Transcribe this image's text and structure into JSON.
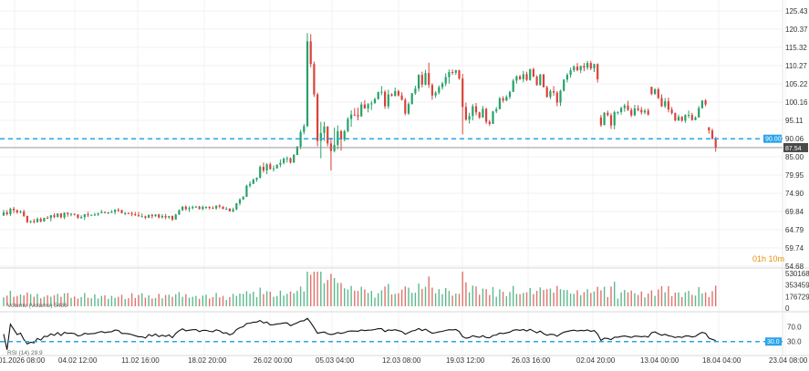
{
  "chart_data": {
    "type": "candlestick",
    "x_tick_labels": [
      "01.2026 08:00",
      "04.02 12:00",
      "11.02 16:00",
      "18.02 20:00",
      "26.02 00:00",
      "05.03 04:00",
      "12.03 08:00",
      "19.03 12:00",
      "26.03 16:00",
      "02.04 20:00",
      "13.04 00:00",
      "18.04 04:00",
      "23.04 08:00"
    ],
    "price_axis": {
      "tick_labels": [
        "125.43",
        "120.37",
        "115.32",
        "110.27",
        "105.22",
        "100.16",
        "95.11",
        "90.06",
        "85.00",
        "79.95",
        "74.90",
        "69.84",
        "64.79",
        "59.74",
        "54.68"
      ],
      "ylim": [
        54.68,
        125.43
      ]
    },
    "reference_line": {
      "value": 90.0,
      "label": "90.00",
      "color": "#29a4e8"
    },
    "last_price": {
      "value": 87.54,
      "label": "87.54",
      "color": "#4a4a4a"
    },
    "countdown": "01h 10m",
    "colors": {
      "up": "#26a269",
      "down": "#d8433a",
      "dashed": "#29a4e8",
      "rsi_line": "#111111"
    },
    "candles": [
      [
        68.7,
        70.3,
        68.6,
        69.6
      ],
      [
        69.6,
        70.2,
        68.7,
        69.1
      ],
      [
        69.1,
        70.9,
        68.6,
        70.6
      ],
      [
        70.6,
        71.1,
        69.4,
        70.2
      ],
      [
        70.2,
        70.4,
        69.2,
        69.6
      ],
      [
        69.6,
        70.2,
        69.3,
        69.8
      ],
      [
        69.8,
        70.3,
        68.3,
        68.6
      ],
      [
        68.6,
        68.7,
        66.6,
        66.9
      ],
      [
        66.9,
        67.4,
        66.6,
        67.2
      ],
      [
        67.2,
        67.8,
        66.5,
        66.9
      ],
      [
        66.9,
        68.2,
        66.7,
        67.8
      ],
      [
        67.8,
        68.2,
        66.8,
        67.1
      ],
      [
        67.1,
        68.1,
        67.0,
        68.1
      ],
      [
        68.1,
        68.6,
        67.8,
        68.0
      ],
      [
        68.0,
        68.8,
        67.1,
        68.8
      ],
      [
        68.8,
        69.4,
        68.0,
        68.3
      ],
      [
        68.3,
        69.3,
        68.2,
        69.3
      ],
      [
        69.3,
        69.4,
        67.9,
        68.2
      ],
      [
        68.2,
        69.6,
        67.7,
        69.5
      ],
      [
        69.5,
        69.6,
        68.4,
        69.1
      ],
      [
        69.1,
        69.4,
        68.5,
        69.2
      ],
      [
        69.2,
        69.3,
        68.7,
        69.0
      ],
      [
        69.0,
        69.1,
        67.8,
        68.1
      ],
      [
        68.1,
        68.8,
        67.8,
        68.3
      ],
      [
        68.3,
        69.1,
        67.5,
        69.1
      ],
      [
        69.1,
        69.7,
        68.3,
        68.8
      ],
      [
        68.8,
        69.0,
        68.6,
        68.9
      ],
      [
        68.9,
        69.5,
        68.6,
        69.0
      ],
      [
        69.0,
        69.5,
        68.6,
        69.4
      ],
      [
        69.4,
        70.3,
        69.3,
        69.7
      ],
      [
        69.7,
        69.8,
        69.4,
        69.4
      ],
      [
        69.4,
        69.7,
        69.1,
        69.6
      ],
      [
        69.6,
        70.2,
        69.4,
        69.7
      ],
      [
        69.7,
        70.5,
        69.0,
        70.3
      ],
      [
        70.3,
        70.8,
        69.7,
        70.2
      ],
      [
        70.2,
        70.3,
        69.3,
        69.4
      ],
      [
        69.4,
        69.7,
        68.8,
        69.4
      ],
      [
        69.4,
        69.6,
        69.2,
        69.3
      ],
      [
        69.3,
        69.8,
        68.5,
        69.1
      ],
      [
        69.1,
        69.7,
        68.6,
        68.8
      ],
      [
        68.8,
        69.7,
        68.4,
        68.5
      ],
      [
        68.5,
        69.3,
        68.2,
        68.5
      ],
      [
        68.5,
        68.7,
        67.7,
        68.1
      ],
      [
        68.1,
        69.0,
        68.0,
        68.9
      ],
      [
        68.9,
        69.2,
        67.9,
        68.5
      ],
      [
        68.5,
        69.1,
        68.4,
        69.0
      ],
      [
        69.0,
        69.2,
        67.9,
        68.2
      ],
      [
        68.2,
        69.1,
        67.9,
        68.6
      ],
      [
        68.6,
        69.2,
        67.7,
        68.2
      ],
      [
        68.2,
        68.6,
        67.8,
        68.6
      ],
      [
        68.6,
        68.7,
        67.2,
        67.6
      ],
      [
        67.6,
        69.2,
        67.6,
        69.0
      ],
      [
        69.0,
        70.4,
        68.9,
        70.2
      ],
      [
        70.2,
        71.3,
        70.0,
        71.2
      ],
      [
        71.2,
        71.5,
        70.1,
        70.5
      ],
      [
        70.5,
        71.3,
        69.7,
        70.8
      ],
      [
        70.8,
        71.5,
        70.4,
        71.1
      ],
      [
        71.1,
        71.4,
        70.8,
        71.2
      ],
      [
        71.2,
        71.4,
        70.4,
        70.5
      ],
      [
        70.5,
        71.5,
        70.2,
        71.1
      ],
      [
        71.1,
        71.3,
        70.5,
        71.1
      ],
      [
        71.1,
        71.3,
        70.4,
        70.8
      ],
      [
        70.8,
        71.3,
        70.7,
        70.7
      ],
      [
        70.7,
        71.5,
        70.3,
        71.5
      ],
      [
        71.5,
        71.8,
        70.7,
        71.2
      ],
      [
        71.2,
        71.3,
        70.5,
        70.5
      ],
      [
        70.5,
        71.1,
        70.3,
        70.6
      ],
      [
        70.6,
        70.8,
        69.8,
        69.9
      ],
      [
        69.9,
        70.9,
        69.6,
        70.4
      ],
      [
        70.4,
        72.2,
        70.2,
        72.1
      ],
      [
        72.1,
        73.5,
        71.5,
        73.2
      ],
      [
        73.2,
        74.1,
        73.0,
        73.9
      ],
      [
        73.9,
        77.3,
        73.9,
        77.0
      ],
      [
        77.0,
        78.2,
        76.5,
        77.5
      ],
      [
        77.5,
        79.0,
        77.4,
        78.7
      ],
      [
        78.7,
        79.3,
        78.1,
        79.2
      ],
      [
        79.2,
        82.6,
        79.0,
        82.2
      ],
      [
        82.2,
        83.4,
        80.6,
        81.2
      ],
      [
        81.2,
        83.2,
        80.2,
        82.9
      ],
      [
        82.9,
        83.4,
        81.4,
        81.6
      ],
      [
        81.6,
        82.6,
        80.9,
        81.8
      ],
      [
        81.8,
        82.9,
        81.7,
        82.8
      ],
      [
        82.8,
        84.3,
        82.1,
        83.3
      ],
      [
        83.3,
        84.8,
        82.9,
        84.5
      ],
      [
        84.5,
        85.1,
        83.4,
        84.6
      ],
      [
        84.6,
        84.8,
        83.1,
        83.4
      ],
      [
        83.4,
        85.8,
        83.3,
        85.5
      ],
      [
        85.5,
        88.0,
        85.5,
        87.8
      ],
      [
        87.8,
        92.5,
        87.1,
        91.9
      ],
      [
        91.9,
        94.1,
        91.2,
        93.5
      ],
      [
        93.5,
        119.3,
        93.2,
        117.0
      ],
      [
        117.0,
        119.0,
        109.8,
        110.7
      ],
      [
        110.7,
        111.4,
        101.6,
        102.3
      ],
      [
        102.3,
        102.8,
        87.9,
        89.4
      ],
      [
        89.4,
        94.7,
        84.6,
        91.6
      ],
      [
        91.6,
        94.7,
        89.4,
        93.4
      ],
      [
        93.4,
        93.5,
        87.9,
        88.7
      ],
      [
        88.7,
        90.3,
        81.2,
        86.6
      ],
      [
        86.6,
        93.1,
        86.2,
        88.3
      ],
      [
        88.3,
        93.7,
        87.1,
        92.1
      ],
      [
        92.1,
        92.5,
        86.7,
        89.8
      ],
      [
        89.8,
        92.5,
        89.3,
        92.1
      ],
      [
        92.1,
        96.0,
        91.8,
        95.5
      ],
      [
        95.5,
        97.9,
        93.3,
        96.7
      ],
      [
        96.7,
        98.5,
        96.3,
        96.6
      ],
      [
        96.6,
        98.6,
        95.1,
        96.2
      ],
      [
        96.2,
        100.2,
        96.1,
        99.5
      ],
      [
        99.5,
        100.7,
        98.3,
        98.4
      ],
      [
        98.4,
        99.9,
        97.3,
        99.6
      ],
      [
        99.6,
        100.5,
        98.0,
        99.8
      ],
      [
        99.8,
        101.4,
        99.8,
        101.0
      ],
      [
        101.0,
        103.1,
        100.8,
        102.9
      ],
      [
        102.9,
        104.6,
        102.1,
        103.0
      ],
      [
        103.0,
        103.5,
        98.3,
        99.0
      ],
      [
        99.0,
        103.6,
        98.3,
        102.3
      ],
      [
        102.3,
        102.6,
        101.7,
        101.9
      ],
      [
        101.9,
        104.2,
        101.7,
        103.2
      ],
      [
        103.2,
        103.6,
        101.7,
        102.0
      ],
      [
        102.0,
        102.9,
        100.6,
        100.8
      ],
      [
        100.8,
        101.3,
        96.5,
        97.0
      ],
      [
        97.0,
        100.2,
        96.6,
        99.6
      ],
      [
        99.6,
        102.7,
        99.5,
        102.6
      ],
      [
        102.6,
        104.7,
        102.2,
        103.9
      ],
      [
        103.9,
        107.9,
        103.1,
        107.7
      ],
      [
        107.7,
        108.6,
        104.2,
        105.0
      ],
      [
        105.0,
        109.1,
        104.8,
        108.2
      ],
      [
        108.2,
        111.1,
        104.1,
        104.9
      ],
      [
        104.9,
        105.4,
        100.8,
        102.0
      ],
      [
        102.0,
        103.2,
        101.3,
        102.8
      ],
      [
        102.8,
        104.8,
        102.3,
        104.3
      ],
      [
        104.3,
        105.8,
        103.6,
        105.3
      ],
      [
        105.3,
        108.1,
        104.6,
        107.1
      ],
      [
        107.1,
        109.2,
        105.3,
        108.5
      ],
      [
        108.5,
        109.2,
        107.7,
        108.3
      ],
      [
        108.3,
        109.1,
        107.7,
        109.0
      ],
      [
        109.0,
        109.1,
        106.4,
        106.7
      ],
      [
        106.7,
        108.0,
        91.2,
        98.8
      ],
      [
        98.8,
        100.0,
        95.0,
        95.3
      ],
      [
        95.3,
        97.2,
        94.2,
        96.3
      ],
      [
        96.3,
        99.6,
        95.1,
        99.0
      ],
      [
        99.0,
        99.9,
        96.5,
        97.3
      ],
      [
        97.3,
        97.5,
        95.5,
        95.9
      ],
      [
        95.9,
        99.1,
        95.8,
        98.3
      ],
      [
        98.3,
        98.6,
        94.1,
        94.7
      ],
      [
        94.7,
        95.2,
        93.5,
        94.1
      ],
      [
        94.1,
        97.7,
        94.1,
        97.6
      ],
      [
        97.6,
        98.8,
        97.1,
        98.2
      ],
      [
        98.2,
        101.6,
        98.2,
        101.2
      ],
      [
        101.2,
        101.8,
        100.0,
        100.6
      ],
      [
        100.6,
        102.1,
        100.4,
        101.6
      ],
      [
        101.6,
        103.3,
        101.0,
        103.0
      ],
      [
        103.0,
        106.6,
        103.0,
        106.1
      ],
      [
        106.1,
        107.6,
        105.3,
        107.3
      ],
      [
        107.3,
        107.7,
        106.3,
        106.5
      ],
      [
        106.5,
        108.8,
        105.6,
        107.9
      ],
      [
        107.9,
        108.6,
        106.0,
        106.3
      ],
      [
        106.3,
        109.4,
        106.1,
        109.3
      ],
      [
        109.3,
        109.7,
        107.1,
        107.2
      ],
      [
        107.2,
        107.6,
        104.7,
        104.9
      ],
      [
        104.9,
        108.0,
        104.7,
        107.8
      ],
      [
        107.8,
        108.0,
        104.2,
        104.3
      ],
      [
        104.3,
        104.7,
        101.4,
        101.6
      ],
      [
        101.6,
        103.7,
        101.0,
        103.2
      ],
      [
        103.2,
        104.6,
        101.9,
        102.8
      ],
      [
        102.8,
        103.2,
        99.0,
        100.0
      ],
      [
        100.0,
        103.6,
        99.1,
        103.3
      ],
      [
        103.3,
        106.5,
        103.1,
        106.4
      ],
      [
        106.4,
        108.2,
        105.6,
        107.7
      ],
      [
        107.7,
        109.7,
        106.9,
        109.0
      ],
      [
        109.0,
        110.4,
        108.5,
        110.0
      ],
      [
        110.0,
        111.0,
        108.7,
        109.0
      ],
      [
        109.0,
        110.2,
        108.2,
        110.2
      ],
      [
        110.2,
        111.0,
        108.7,
        109.7
      ],
      [
        109.7,
        111.6,
        109.1,
        111.0
      ],
      [
        111.0,
        111.6,
        109.0,
        109.5
      ],
      [
        109.5,
        110.8,
        108.5,
        110.7
      ],
      [
        110.7,
        110.9,
        105.6,
        106.5
      ],
      [
        95.9,
        96.6,
        93.3,
        93.8
      ],
      [
        93.8,
        97.4,
        93.7,
        97.2
      ],
      [
        97.2,
        97.8,
        96.2,
        96.5
      ],
      [
        96.5,
        97.1,
        92.7,
        93.7
      ],
      [
        93.7,
        97.8,
        92.6,
        97.4
      ],
      [
        97.4,
        97.6,
        96.7,
        97.4
      ],
      [
        97.4,
        98.9,
        96.7,
        98.5
      ],
      [
        98.5,
        99.7,
        97.5,
        99.2
      ],
      [
        99.2,
        100.5,
        97.7,
        98.0
      ],
      [
        98.0,
        98.6,
        96.0,
        96.5
      ],
      [
        96.5,
        99.4,
        96.3,
        98.4
      ],
      [
        98.4,
        99.3,
        97.6,
        98.0
      ],
      [
        98.0,
        98.8,
        96.7,
        97.3
      ],
      [
        97.3,
        98.3,
        96.8,
        97.8
      ],
      [
        97.8,
        98.4,
        96.4,
        96.7
      ],
      [
        104.4,
        104.4,
        102.1,
        102.4
      ],
      [
        102.4,
        104.0,
        102.2,
        103.7
      ],
      [
        103.7,
        104.2,
        101.0,
        101.3
      ],
      [
        101.3,
        102.3,
        98.8,
        99.0
      ],
      [
        99.0,
        101.3,
        98.5,
        100.4
      ],
      [
        100.4,
        101.4,
        97.3,
        98.1
      ],
      [
        98.1,
        98.8,
        96.7,
        97.1
      ],
      [
        97.1,
        97.3,
        94.8,
        95.1
      ],
      [
        95.1,
        96.7,
        94.9,
        96.1
      ],
      [
        96.1,
        96.3,
        94.7,
        95.0
      ],
      [
        95.0,
        96.8,
        94.4,
        96.6
      ],
      [
        96.6,
        97.8,
        95.7,
        96.6
      ],
      [
        96.6,
        97.2,
        95.0,
        95.2
      ],
      [
        95.2,
        96.2,
        95.1,
        95.9
      ],
      [
        95.9,
        99.1,
        95.9,
        98.5
      ],
      [
        98.5,
        100.7,
        98.3,
        100.6
      ],
      [
        100.6,
        101.0,
        99.0,
        99.5
      ],
      [
        93.2,
        93.2,
        91.4,
        92.3
      ],
      [
        92.3,
        92.8,
        89.8,
        90.0
      ],
      [
        90.0,
        90.5,
        86.4,
        87.5
      ]
    ],
    "volume_axis": {
      "tick_labels": [
        "530168",
        "353459",
        "176729",
        "0"
      ],
      "max": 530168
    },
    "volume_legend": "Volume (Volume) 5486",
    "rsi_axis": {
      "tick_labels": [
        "70.0",
        "30.0"
      ],
      "reference_line": 30.0,
      "reference_label": "30.0"
    },
    "rsi_legend": "RSI (14) 29.9",
    "rsi_last": 29.9
  }
}
